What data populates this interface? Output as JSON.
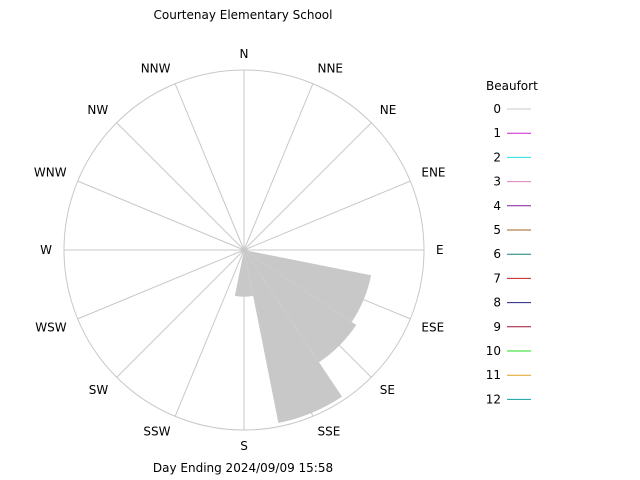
{
  "chart_data": {
    "type": "wind-rose",
    "title": "Courtenay Elementary School",
    "footer": "Day Ending 2024/09/09 15:58",
    "directions": [
      "N",
      "NNE",
      "NE",
      "ENE",
      "E",
      "ESE",
      "SE",
      "SSE",
      "S",
      "SSW",
      "SW",
      "WSW",
      "W",
      "WNW",
      "NW",
      "NNW"
    ],
    "frequency_rmax": 1.0,
    "petals": [
      {
        "direction": "ESE",
        "start_deg": 101.25,
        "end_deg": 123.75,
        "value": 0.72,
        "beaufort": 0
      },
      {
        "direction": "SE",
        "start_deg": 123.75,
        "end_deg": 146.25,
        "value": 0.75,
        "beaufort": 0
      },
      {
        "direction": "SSE",
        "start_deg": 146.25,
        "end_deg": 168.75,
        "value": 0.98,
        "beaufort": 0
      },
      {
        "direction": "S",
        "start_deg": 168.75,
        "end_deg": 191.25,
        "value": 0.26,
        "beaufort": 0
      }
    ],
    "petal_color": "#c8c8c8",
    "grid_color": "#c8c8c8",
    "legend": {
      "title": "Beaufort",
      "items": [
        {
          "label": "0",
          "color": "#c8c8c8"
        },
        {
          "label": "1",
          "color": "#d020d0"
        },
        {
          "label": "2",
          "color": "#20e0e0"
        },
        {
          "label": "3",
          "color": "#e080c0"
        },
        {
          "label": "4",
          "color": "#8020a0"
        },
        {
          "label": "5",
          "color": "#a06020"
        },
        {
          "label": "6",
          "color": "#108080"
        },
        {
          "label": "7",
          "color": "#c02020"
        },
        {
          "label": "8",
          "color": "#202080"
        },
        {
          "label": "9",
          "color": "#a01030"
        },
        {
          "label": "10",
          "color": "#20e020"
        },
        {
          "label": "11",
          "color": "#e0a020"
        },
        {
          "label": "12",
          "color": "#10a0a0"
        }
      ]
    }
  }
}
